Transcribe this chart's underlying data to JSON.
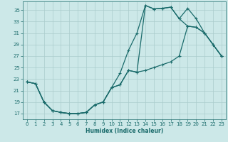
{
  "xlabel": "Humidex (Indice chaleur)",
  "bg_color": "#cce8e8",
  "grid_color": "#aacccc",
  "line_color": "#1a6b6b",
  "xlim": [
    -0.5,
    23.5
  ],
  "ylim": [
    16.0,
    36.5
  ],
  "xticks": [
    0,
    1,
    2,
    3,
    4,
    5,
    6,
    7,
    8,
    9,
    10,
    11,
    12,
    13,
    14,
    15,
    16,
    17,
    18,
    19,
    20,
    21,
    22,
    23
  ],
  "yticks": [
    17,
    19,
    21,
    23,
    25,
    27,
    29,
    31,
    33,
    35
  ],
  "curve_upper": {
    "x": [
      0,
      1,
      2,
      3,
      4,
      5,
      6,
      7,
      8,
      9,
      10,
      11,
      12,
      13,
      14,
      15,
      16,
      17,
      18,
      19,
      20,
      21,
      22,
      23
    ],
    "y": [
      22.5,
      22.2,
      19.0,
      17.5,
      17.2,
      17.0,
      17.0,
      17.2,
      18.5,
      19.0,
      21.5,
      24.0,
      28.0,
      31.0,
      35.8,
      35.2,
      35.3,
      35.5,
      33.5,
      35.3,
      33.5,
      31.0,
      29.0,
      27.0
    ]
  },
  "curve_middle": {
    "x": [
      0,
      1,
      2,
      3,
      4,
      5,
      6,
      7,
      8,
      9,
      10,
      11,
      12,
      13,
      14,
      15,
      16,
      17,
      18,
      19,
      20,
      21,
      22,
      23
    ],
    "y": [
      22.5,
      22.2,
      19.0,
      17.5,
      17.2,
      17.0,
      17.0,
      17.2,
      18.5,
      19.0,
      21.5,
      22.0,
      24.5,
      24.2,
      35.8,
      35.2,
      35.3,
      35.5,
      33.5,
      32.2,
      32.0,
      31.0,
      29.0,
      27.0
    ]
  },
  "curve_lower": {
    "x": [
      0,
      1,
      2,
      3,
      4,
      5,
      6,
      7,
      8,
      9,
      10,
      11,
      12,
      13,
      14,
      15,
      16,
      17,
      18,
      19,
      20,
      21,
      22,
      23
    ],
    "y": [
      22.5,
      22.2,
      19.0,
      17.5,
      17.2,
      17.0,
      17.0,
      17.2,
      18.5,
      19.0,
      21.5,
      22.0,
      24.5,
      24.2,
      24.5,
      25.0,
      25.5,
      26.0,
      27.0,
      32.2,
      32.0,
      31.0,
      29.0,
      27.0
    ]
  }
}
